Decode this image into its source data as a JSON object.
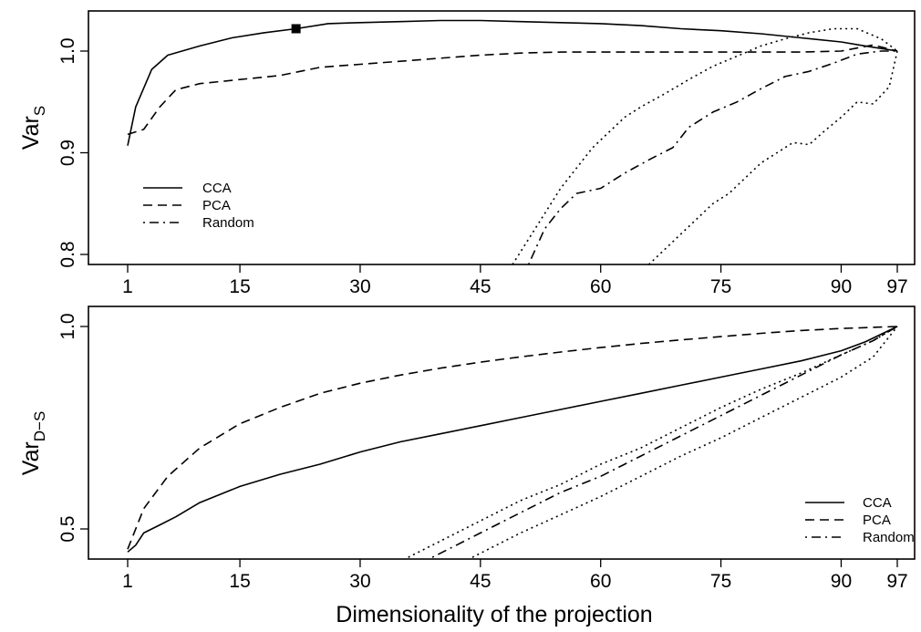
{
  "xlabel": "Dimensionality of the projection",
  "chart_data": [
    {
      "type": "line",
      "ylabel": "Var",
      "ylabel_sub": "S",
      "x_ticks": [
        1,
        15,
        30,
        45,
        60,
        75,
        90,
        97
      ],
      "y_ticks": [
        0.8,
        0.9,
        1.0
      ],
      "y_tick_labels": [
        "0.8",
        "0.9",
        "1.0"
      ],
      "xlim": [
        1,
        97
      ],
      "ylim": [
        0.8,
        1.04
      ],
      "grid": false,
      "legend_position": "bottom-left",
      "marker": {
        "x": 22,
        "y": 1.022,
        "shape": "filled-square"
      },
      "series": [
        {
          "name": "CCA",
          "style": "solid",
          "points": [
            [
              1,
              0.907
            ],
            [
              2,
              0.945
            ],
            [
              4,
              0.982
            ],
            [
              6,
              0.996
            ],
            [
              10,
              1.005
            ],
            [
              14,
              1.013
            ],
            [
              18,
              1.018
            ],
            [
              22,
              1.022
            ],
            [
              26,
              1.027
            ],
            [
              30,
              1.028
            ],
            [
              35,
              1.029
            ],
            [
              40,
              1.03
            ],
            [
              45,
              1.03
            ],
            [
              50,
              1.029
            ],
            [
              55,
              1.028
            ],
            [
              60,
              1.027
            ],
            [
              65,
              1.025
            ],
            [
              70,
              1.022
            ],
            [
              75,
              1.02
            ],
            [
              80,
              1.017
            ],
            [
              85,
              1.013
            ],
            [
              90,
              1.009
            ],
            [
              93,
              1.005
            ],
            [
              97,
              1.0
            ]
          ]
        },
        {
          "name": "PCA",
          "style": "dashed",
          "points": [
            [
              1,
              0.918
            ],
            [
              3,
              0.923
            ],
            [
              5,
              0.945
            ],
            [
              7,
              0.962
            ],
            [
              10,
              0.968
            ],
            [
              15,
              0.972
            ],
            [
              20,
              0.976
            ],
            [
              25,
              0.984
            ],
            [
              30,
              0.987
            ],
            [
              35,
              0.99
            ],
            [
              40,
              0.993
            ],
            [
              45,
              0.996
            ],
            [
              50,
              0.998
            ],
            [
              55,
              0.999
            ],
            [
              60,
              0.999
            ],
            [
              65,
              0.999
            ],
            [
              70,
              0.999
            ],
            [
              75,
              0.999
            ],
            [
              80,
              0.999
            ],
            [
              85,
              0.999
            ],
            [
              90,
              1.0
            ],
            [
              94,
              1.006
            ],
            [
              97,
              1.0
            ]
          ]
        },
        {
          "name": "Random",
          "style": "dotdash",
          "points": [
            [
              51,
              0.79
            ],
            [
              53,
              0.825
            ],
            [
              55,
              0.845
            ],
            [
              57,
              0.86
            ],
            [
              60,
              0.865
            ],
            [
              63,
              0.88
            ],
            [
              66,
              0.893
            ],
            [
              69,
              0.905
            ],
            [
              71,
              0.925
            ],
            [
              74,
              0.94
            ],
            [
              77,
              0.95
            ],
            [
              80,
              0.963
            ],
            [
              83,
              0.975
            ],
            [
              86,
              0.98
            ],
            [
              89,
              0.988
            ],
            [
              92,
              0.997
            ],
            [
              95,
              1.0
            ],
            [
              97,
              1.0
            ]
          ]
        },
        {
          "name": "",
          "style": "dotted",
          "points": [
            [
              49,
              0.79
            ],
            [
              51,
              0.815
            ],
            [
              53,
              0.84
            ],
            [
              55,
              0.865
            ],
            [
              57,
              0.885
            ],
            [
              59,
              0.905
            ],
            [
              61,
              0.92
            ],
            [
              63,
              0.935
            ],
            [
              65,
              0.945
            ],
            [
              68,
              0.958
            ],
            [
              71,
              0.972
            ],
            [
              74,
              0.985
            ],
            [
              77,
              0.995
            ],
            [
              80,
              1.005
            ],
            [
              83,
              1.012
            ],
            [
              86,
              1.018
            ],
            [
              89,
              1.022
            ],
            [
              92,
              1.022
            ],
            [
              95,
              1.012
            ],
            [
              97,
              1.0
            ]
          ]
        },
        {
          "name": "",
          "style": "dotted",
          "points": [
            [
              66,
              0.79
            ],
            [
              68,
              0.805
            ],
            [
              70,
              0.82
            ],
            [
              72,
              0.835
            ],
            [
              74,
              0.85
            ],
            [
              76,
              0.86
            ],
            [
              78,
              0.875
            ],
            [
              80,
              0.89
            ],
            [
              82,
              0.9
            ],
            [
              84,
              0.91
            ],
            [
              86,
              0.908
            ],
            [
              88,
              0.922
            ],
            [
              90,
              0.935
            ],
            [
              92,
              0.95
            ],
            [
              94,
              0.948
            ],
            [
              96,
              0.965
            ],
            [
              97,
              1.0
            ]
          ]
        }
      ]
    },
    {
      "type": "line",
      "ylabel": "Var",
      "ylabel_sub": "D−S",
      "x_ticks": [
        1,
        15,
        30,
        45,
        60,
        75,
        90,
        97
      ],
      "y_ticks": [
        0.5,
        1.0
      ],
      "y_tick_labels": [
        "0.5",
        "1.0"
      ],
      "xlim": [
        1,
        97
      ],
      "ylim": [
        0.43,
        1.0
      ],
      "grid": false,
      "legend_position": "bottom-right",
      "series": [
        {
          "name": "CCA",
          "style": "solid",
          "points": [
            [
              1,
              0.443
            ],
            [
              2,
              0.46
            ],
            [
              3,
              0.49
            ],
            [
              5,
              0.51
            ],
            [
              7,
              0.53
            ],
            [
              10,
              0.565
            ],
            [
              15,
              0.605
            ],
            [
              20,
              0.635
            ],
            [
              25,
              0.66
            ],
            [
              30,
              0.69
            ],
            [
              35,
              0.715
            ],
            [
              40,
              0.735
            ],
            [
              45,
              0.755
            ],
            [
              50,
              0.775
            ],
            [
              55,
              0.795
            ],
            [
              60,
              0.815
            ],
            [
              65,
              0.835
            ],
            [
              70,
              0.855
            ],
            [
              75,
              0.875
            ],
            [
              80,
              0.895
            ],
            [
              85,
              0.915
            ],
            [
              90,
              0.94
            ],
            [
              93,
              0.962
            ],
            [
              97,
              1.0
            ]
          ]
        },
        {
          "name": "PCA",
          "style": "dashed",
          "points": [
            [
              1,
              0.45
            ],
            [
              3,
              0.55
            ],
            [
              6,
              0.63
            ],
            [
              10,
              0.7
            ],
            [
              15,
              0.76
            ],
            [
              20,
              0.8
            ],
            [
              25,
              0.835
            ],
            [
              30,
              0.86
            ],
            [
              35,
              0.88
            ],
            [
              40,
              0.897
            ],
            [
              45,
              0.912
            ],
            [
              50,
              0.925
            ],
            [
              55,
              0.937
            ],
            [
              60,
              0.948
            ],
            [
              65,
              0.958
            ],
            [
              70,
              0.967
            ],
            [
              75,
              0.975
            ],
            [
              80,
              0.983
            ],
            [
              85,
              0.99
            ],
            [
              90,
              0.995
            ],
            [
              97,
              1.0
            ]
          ]
        },
        {
          "name": "Random",
          "style": "dotdash",
          "points": [
            [
              39,
              0.43
            ],
            [
              42,
              0.46
            ],
            [
              45,
              0.49
            ],
            [
              50,
              0.54
            ],
            [
              55,
              0.59
            ],
            [
              60,
              0.63
            ],
            [
              65,
              0.68
            ],
            [
              70,
              0.73
            ],
            [
              75,
              0.78
            ],
            [
              80,
              0.83
            ],
            [
              85,
              0.88
            ],
            [
              90,
              0.93
            ],
            [
              94,
              0.965
            ],
            [
              97,
              1.0
            ]
          ]
        },
        {
          "name": "",
          "style": "dotted",
          "points": [
            [
              36,
              0.43
            ],
            [
              40,
              0.47
            ],
            [
              45,
              0.52
            ],
            [
              50,
              0.57
            ],
            [
              55,
              0.61
            ],
            [
              60,
              0.66
            ],
            [
              65,
              0.7
            ],
            [
              70,
              0.75
            ],
            [
              75,
              0.8
            ],
            [
              80,
              0.845
            ],
            [
              85,
              0.885
            ],
            [
              90,
              0.93
            ],
            [
              94,
              0.965
            ],
            [
              97,
              1.0
            ]
          ]
        },
        {
          "name": "",
          "style": "dotted",
          "points": [
            [
              44,
              0.43
            ],
            [
              50,
              0.49
            ],
            [
              55,
              0.535
            ],
            [
              60,
              0.58
            ],
            [
              65,
              0.63
            ],
            [
              70,
              0.68
            ],
            [
              75,
              0.725
            ],
            [
              80,
              0.775
            ],
            [
              85,
              0.825
            ],
            [
              90,
              0.875
            ],
            [
              94,
              0.925
            ],
            [
              97,
              1.0
            ]
          ]
        }
      ]
    }
  ]
}
